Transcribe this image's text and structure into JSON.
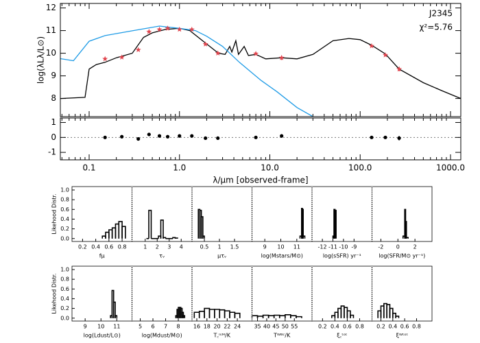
{
  "chart_data": [
    {
      "type": "sed",
      "title": "J2345",
      "annotation": "χ²=5.76",
      "ylabel": "log(λLλ/L⊙)",
      "log_x": true,
      "xlim": [
        0.048,
        1300
      ],
      "ylim": [
        7.2,
        12.2
      ],
      "yticks": [
        8,
        9,
        10,
        11,
        12
      ],
      "series": [
        {
          "color": "#000000",
          "style": "line",
          "x": [
            0.048,
            0.09,
            0.1,
            0.12,
            0.15,
            0.2,
            0.3,
            0.4,
            0.5,
            0.7,
            1.0,
            1.3,
            1.94,
            2.7,
            3.2,
            3.6,
            3.8,
            4.2,
            4.5,
            5.2,
            5.8,
            7,
            9,
            13.5,
            20,
            30,
            50,
            75,
            100,
            134,
            190,
            270,
            500,
            800,
            1300
          ],
          "values": [
            8.0,
            8.05,
            9.3,
            9.5,
            9.6,
            9.8,
            10.0,
            10.7,
            10.9,
            11.05,
            11.1,
            11.0,
            10.45,
            10.0,
            9.95,
            10.3,
            10.05,
            10.55,
            9.95,
            10.3,
            9.9,
            9.95,
            9.75,
            9.8,
            9.75,
            9.95,
            10.55,
            10.65,
            10.6,
            10.35,
            9.97,
            9.3,
            8.7,
            8.35,
            8.0
          ]
        },
        {
          "color": "#1e9be6",
          "style": "line",
          "x": [
            0.048,
            0.067,
            0.1,
            0.15,
            0.3,
            0.6,
            1.0,
            1.5,
            2,
            3,
            4.6,
            8,
            12,
            20,
            30
          ],
          "values": [
            9.76,
            9.67,
            10.53,
            10.78,
            10.99,
            11.2,
            11.1,
            11.0,
            10.75,
            10.3,
            9.6,
            8.8,
            8.3,
            7.6,
            7.2
          ]
        },
        {
          "color": "#e0454e",
          "style": "star",
          "x": [
            0.15,
            0.23,
            0.35,
            0.46,
            0.6,
            0.74,
            1.0,
            1.37,
            1.94,
            2.66,
            7.0,
            13.5,
            134,
            190,
            270
          ],
          "values": [
            9.75,
            9.82,
            10.15,
            10.95,
            11.05,
            11.1,
            11.05,
            11.05,
            10.4,
            10.0,
            9.98,
            9.8,
            10.32,
            9.92,
            9.3
          ],
          "errors": [
            0.05,
            0.05,
            0.05,
            0.05,
            0.05,
            0.05,
            0.05,
            0.05,
            0.05,
            0.05,
            0.05,
            0.1,
            0.05,
            0.05,
            0.1
          ]
        }
      ]
    },
    {
      "type": "residual",
      "xlabel": "λ/μm [observed-frame]",
      "log_x": true,
      "xlim": [
        0.048,
        1300
      ],
      "ylim": [
        -1.5,
        1.3
      ],
      "yticks": [
        -1,
        0,
        1
      ],
      "xticks": [
        {
          "value": 0.1,
          "label": "0.1"
        },
        {
          "value": 1,
          "label": "1.0"
        },
        {
          "value": 10,
          "label": "10.0"
        },
        {
          "value": 100,
          "label": "100.0"
        },
        {
          "value": 1000,
          "label": "1000.0"
        }
      ],
      "color": "#000000",
      "x": [
        0.15,
        0.23,
        0.35,
        0.46,
        0.6,
        0.74,
        1.0,
        1.37,
        1.94,
        2.66,
        7.0,
        13.5,
        134,
        190,
        270
      ],
      "values": [
        0.0,
        0.05,
        -0.1,
        0.2,
        0.1,
        0.05,
        0.1,
        0.1,
        -0.05,
        -0.05,
        0.0,
        0.1,
        0.0,
        0.0,
        -0.05
      ],
      "errors": [
        0.05,
        0.05,
        0.05,
        0.08,
        0.05,
        0.05,
        0.05,
        0.05,
        0.05,
        0.05,
        0.08,
        0.12,
        0.08,
        0.08,
        0.15
      ]
    },
    {
      "type": "histogram",
      "ylabel": "Likehood Distr.",
      "xlabel": "fμ",
      "xlim": [
        0.04,
        0.95
      ],
      "xticks": [
        0.2,
        0.4,
        0.6,
        0.8
      ],
      "ylim": [
        -0.06,
        1.07
      ],
      "yticks": [
        {
          "value": 0,
          "label": "0.0"
        },
        0.2,
        0.4,
        0.6,
        0.8,
        {
          "value": 1,
          "label": "1.0"
        }
      ],
      "bins": [
        0.5,
        0.55,
        0.6,
        0.65,
        0.7,
        0.75,
        0.8,
        0.85
      ],
      "values": [
        0.05,
        0.13,
        0.18,
        0.22,
        0.3,
        0.35,
        0.25
      ]
    },
    {
      "type": "histogram",
      "xlabel": "τᵥ",
      "xlim": [
        -0.1,
        4.9
      ],
      "xticks": [
        1,
        2,
        3,
        4
      ],
      "ylim": [
        -0.06,
        1.07
      ],
      "bins": [
        1.1,
        1.3,
        1.5,
        1.7,
        1.9,
        2.1,
        2.3,
        2.5,
        2.7,
        2.9,
        3.1,
        3.3,
        3.5,
        3.7
      ],
      "values": [
        0,
        0.58,
        0,
        0,
        0,
        0.05,
        0.38,
        0.02,
        0,
        0,
        0,
        0.02,
        0.01
      ]
    },
    {
      "type": "histogram",
      "xlabel": "μτᵥ",
      "xlim": [
        0.09,
        2.08
      ],
      "xticks": [
        0.5,
        1.0,
        1.5
      ],
      "ylim": [
        -0.06,
        1.07
      ],
      "bins": [
        0.3,
        0.35,
        0.4,
        0.45,
        0.5
      ],
      "values": [
        0.6,
        0.58,
        0.45,
        0.05
      ]
    },
    {
      "type": "histogram",
      "xlabel": "log(Mstars/M⊙)",
      "xlim": [
        8.2,
        11.95
      ],
      "xticks": [
        9,
        10,
        11
      ],
      "ylim": [
        -0.06,
        1.07
      ],
      "bins": [
        11.2,
        11.3,
        11.35,
        11.4,
        11.5
      ],
      "values": [
        0.05,
        0.62,
        0.6,
        0.05
      ]
    },
    {
      "type": "histogram",
      "xlabel": "log(sSFR) yr⁻¹",
      "xlim": [
        -12.98,
        -7.3
      ],
      "xticks": [
        -12,
        -11,
        -10,
        -9
      ],
      "ylim": [
        -0.06,
        1.07
      ],
      "bins": [
        -11.0,
        -10.9,
        -10.8,
        -10.7
      ],
      "values": [
        0.05,
        0.6,
        0.58
      ]
    },
    {
      "type": "histogram",
      "xlabel": "log(SFR/M⊙ yr⁻¹)",
      "xlim": [
        -3.04,
        4.0
      ],
      "xticks": [
        -2,
        0,
        2
      ],
      "ylim": [
        -0.06,
        1.07
      ],
      "bins": [
        0.6,
        0.8,
        0.9,
        1.0,
        1.2
      ],
      "values": [
        0.05,
        0.6,
        0.35,
        0.02
      ]
    },
    {
      "type": "histogram",
      "ylabel": "Likehood Distr.",
      "xlabel": "log(Ldust/L⊙)",
      "xlim": [
        8.17,
        11.96
      ],
      "xticks": [
        9,
        10,
        11
      ],
      "ylim": [
        -0.06,
        1.07
      ],
      "yticks": [
        {
          "value": 0,
          "label": "0.0"
        },
        0.2,
        0.4,
        0.6,
        0.8,
        {
          "value": 1,
          "label": "1.0"
        }
      ],
      "bins": [
        10.6,
        10.7,
        10.8,
        10.9,
        11.0
      ],
      "values": [
        0.05,
        0.57,
        0.33,
        0.05
      ]
    },
    {
      "type": "histogram",
      "xlabel": "log(Mdust/M⊙)",
      "xlim": [
        4.35,
        9.08
      ],
      "xticks": [
        5,
        6,
        7,
        8
      ],
      "ylim": [
        -0.06,
        1.07
      ],
      "bins": [
        7.8,
        7.9,
        8.0,
        8.1,
        8.2,
        8.3,
        8.4,
        8.5
      ],
      "values": [
        0.05,
        0.18,
        0.22,
        0.22,
        0.2,
        0.12,
        0.05
      ]
    },
    {
      "type": "histogram",
      "xlabel": "T꜀ᴵˢᴹ/K",
      "xlim": [
        15.05,
        26.9
      ],
      "xticks": [
        16,
        18,
        20,
        22,
        24
      ],
      "ylim": [
        -0.06,
        1.07
      ],
      "bins": [
        15.5,
        16.5,
        17.5,
        18.5,
        19.5,
        20.5,
        21.5,
        22.5,
        23.5,
        24.5
      ],
      "values": [
        0.12,
        0.14,
        0.2,
        0.18,
        0.18,
        0.17,
        0.15,
        0.12,
        0.1
      ]
    },
    {
      "type": "histogram",
      "xlabel": "Tᵂᴮᶜ/K",
      "xlim": [
        32.0,
        64.6
      ],
      "xticks": [
        35,
        40,
        45,
        50,
        55
      ],
      "ylim": [
        -0.06,
        1.07
      ],
      "bins": [
        32,
        35,
        38,
        41,
        44,
        47,
        50,
        53,
        56,
        59
      ],
      "values": [
        0.05,
        0.04,
        0.06,
        0.05,
        0.06,
        0.05,
        0.07,
        0.05,
        0.03
      ]
    },
    {
      "type": "histogram",
      "xlabel": "ξ꜀ᵗᵒᵗ",
      "xlim": [
        0.03,
        1.0
      ],
      "xticks": [
        0.2,
        0.4,
        0.6,
        0.8
      ],
      "ylim": [
        -0.06,
        1.07
      ],
      "bins": [
        0.35,
        0.4,
        0.45,
        0.5,
        0.55,
        0.6,
        0.65,
        0.7
      ],
      "values": [
        0.05,
        0.12,
        0.2,
        0.25,
        0.22,
        0.15,
        0.06
      ]
    },
    {
      "type": "histogram",
      "xlabel": "ξᵂᵗᵒᵗ",
      "xlim": [
        0.05,
        1.06
      ],
      "xticks": [
        0.2,
        0.4,
        0.6,
        0.8
      ],
      "ylim": [
        -0.06,
        1.07
      ],
      "bins": [
        0.15,
        0.2,
        0.25,
        0.3,
        0.35,
        0.4,
        0.45,
        0.5
      ],
      "values": [
        0.15,
        0.25,
        0.3,
        0.28,
        0.2,
        0.1,
        0.04
      ]
    }
  ]
}
